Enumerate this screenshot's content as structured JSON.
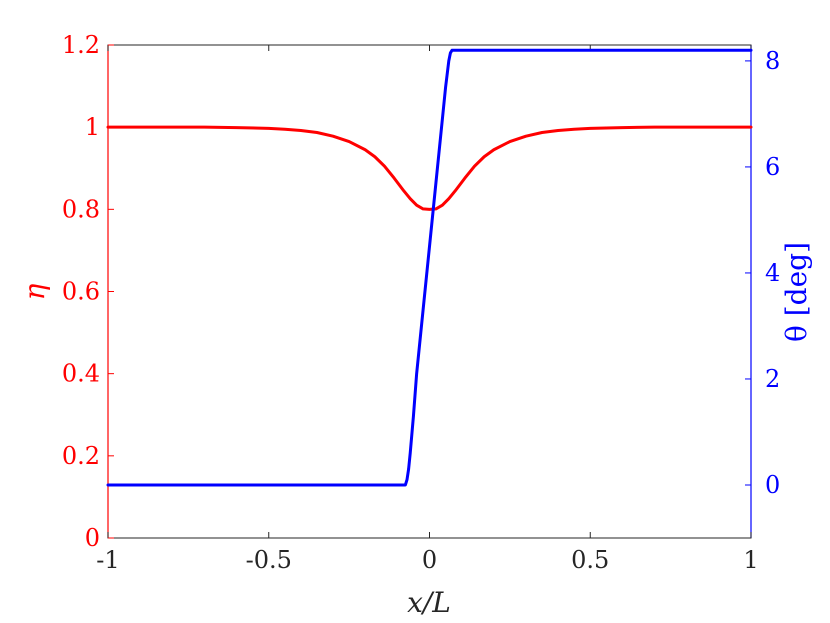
{
  "chart_data": {
    "type": "line",
    "xlabel": "x/L",
    "ylabel_left": "η",
    "ylabel_right": "θ [deg]",
    "xlim": [
      -1,
      1
    ],
    "ylim_left": [
      0,
      1.2
    ],
    "ylim_right": [
      -1,
      8.3
    ],
    "x_ticks": [
      "-1",
      "-0.5",
      "0",
      "0.5",
      "1"
    ],
    "y_left_ticks": [
      "0",
      "0.2",
      "0.4",
      "0.6",
      "0.8",
      "1",
      "1.2"
    ],
    "y_right_ticks": [
      "0",
      "2",
      "4",
      "6",
      "8"
    ],
    "grid": false,
    "colors": {
      "eta": "#ff0000",
      "theta": "#0000ff",
      "frame": "#262626"
    },
    "series": [
      {
        "axis": "left",
        "color": "#ff0000",
        "x": [
          -1,
          -0.9,
          -0.8,
          -0.7,
          -0.6,
          -0.5,
          -0.45,
          -0.4,
          -0.35,
          -0.3,
          -0.25,
          -0.2,
          -0.17,
          -0.14,
          -0.11,
          -0.08,
          -0.06,
          -0.04,
          -0.02,
          0,
          0.02,
          0.04,
          0.06,
          0.08,
          0.11,
          0.14,
          0.17,
          0.2,
          0.25,
          0.3,
          0.35,
          0.4,
          0.45,
          0.5,
          0.6,
          0.7,
          0.8,
          0.9,
          1
        ],
        "y": [
          1.0,
          1.0,
          1.0,
          1.0,
          0.999,
          0.997,
          0.995,
          0.992,
          0.987,
          0.978,
          0.965,
          0.945,
          0.928,
          0.905,
          0.876,
          0.845,
          0.826,
          0.81,
          0.801,
          0.8,
          0.801,
          0.81,
          0.826,
          0.845,
          0.876,
          0.905,
          0.928,
          0.945,
          0.965,
          0.978,
          0.987,
          0.992,
          0.995,
          0.997,
          0.999,
          1.0,
          1.0,
          1.0,
          1.0
        ]
      },
      {
        "axis": "right",
        "color": "#0000ff",
        "x": [
          -1,
          -0.075,
          -0.07,
          -0.065,
          -0.06,
          -0.05,
          -0.04,
          -0.02,
          0,
          0.02,
          0.04,
          0.05,
          0.06,
          0.065,
          0.07,
          0.075,
          1
        ],
        "y": [
          0,
          0,
          0.1,
          0.3,
          0.6,
          1.3,
          2.1,
          3.3,
          4.5,
          5.7,
          6.9,
          7.5,
          8.0,
          8.15,
          8.2,
          8.2,
          8.2
        ]
      }
    ]
  }
}
